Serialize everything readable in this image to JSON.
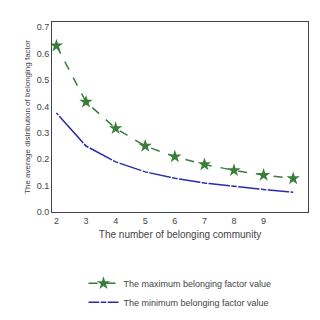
{
  "chart_data": {
    "type": "line",
    "x": [
      2,
      3,
      4,
      5,
      6,
      7,
      8,
      9,
      10
    ],
    "series": [
      {
        "name": "The maximum belonging factor value",
        "color": "#3a7d3a",
        "marker": "star",
        "line_style": "dashed",
        "values": [
          0.63,
          0.417,
          0.317,
          0.25,
          0.21,
          0.18,
          0.158,
          0.14,
          0.127
        ]
      },
      {
        "name": "The minimum belonging factor value",
        "color": "#2b2baa",
        "marker": "circle",
        "line_style": "solid",
        "values": [
          0.375,
          0.25,
          0.19,
          0.152,
          0.128,
          0.11,
          0.098,
          0.085,
          0.075
        ]
      }
    ],
    "xlabel": "The number of belonging community",
    "ylabel": "The average distribution of belonging factor",
    "xlim": [
      1.85,
      10.5
    ],
    "ylim": [
      0.0,
      0.72
    ],
    "xticks": [
      2,
      3,
      4,
      5,
      6,
      7,
      8,
      9
    ],
    "yticks": [
      {
        "value": 0.0,
        "label": "0.0"
      },
      0.1,
      0.2,
      0.3,
      0.4,
      0.5,
      0.6,
      0.7
    ],
    "grid": false,
    "legend": "bottom"
  }
}
